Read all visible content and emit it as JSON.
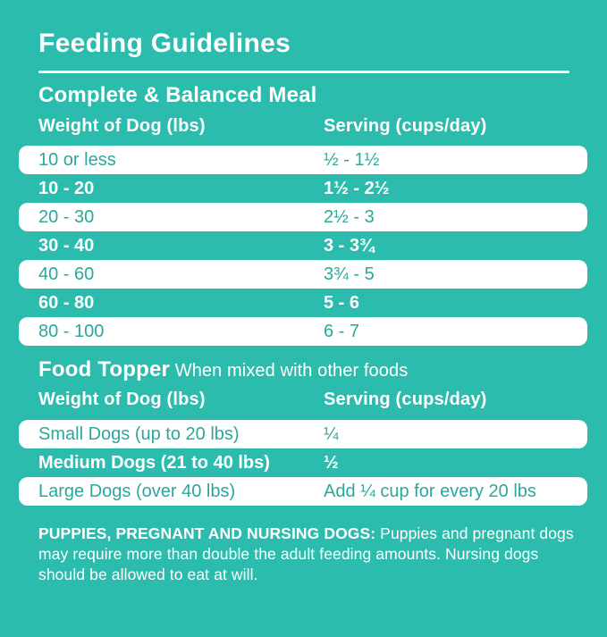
{
  "page": {
    "title": "Feeding Guidelines",
    "colors": {
      "background": "#2CBCAD",
      "row_white": "#FFFFFF",
      "row_text_teal": "#2AA89B",
      "text_white": "#FFFFFF"
    }
  },
  "meal": {
    "heading": "Complete & Balanced Meal",
    "columns": {
      "weight": "Weight of Dog (lbs)",
      "serving": "Serving (cups/day)"
    },
    "rows": [
      {
        "weight": "10 or less",
        "serving": "½ - 1½"
      },
      {
        "weight": "10 - 20",
        "serving": "1½ - 2½"
      },
      {
        "weight": "20 - 30",
        "serving": "2½ - 3"
      },
      {
        "weight": "30 - 40",
        "serving": "3 - 3¾"
      },
      {
        "weight": "40 - 60",
        "serving": "3¾ - 5"
      },
      {
        "weight": "60 - 80",
        "serving": "5 - 6"
      },
      {
        "weight": "80 - 100",
        "serving": "6 - 7"
      }
    ]
  },
  "topper": {
    "heading": "Food Topper",
    "subheading": " When mixed with other foods",
    "columns": {
      "weight": "Weight of Dog (lbs)",
      "serving": "Serving (cups/day)"
    },
    "rows": [
      {
        "weight": "Small Dogs (up to 20 lbs)",
        "serving": "¼"
      },
      {
        "weight": "Medium Dogs (21 to 40 lbs)",
        "serving": "½"
      },
      {
        "weight": "Large Dogs (over 40 lbs)",
        "serving": "Add ¼ cup for every 20 lbs"
      }
    ]
  },
  "footnote": {
    "lead": "PUPPIES, PREGNANT AND NURSING DOGS:",
    "text": " Puppies and pregnant dogs may require more than double the adult feeding amounts. Nursing dogs should be allowed to eat at will."
  }
}
